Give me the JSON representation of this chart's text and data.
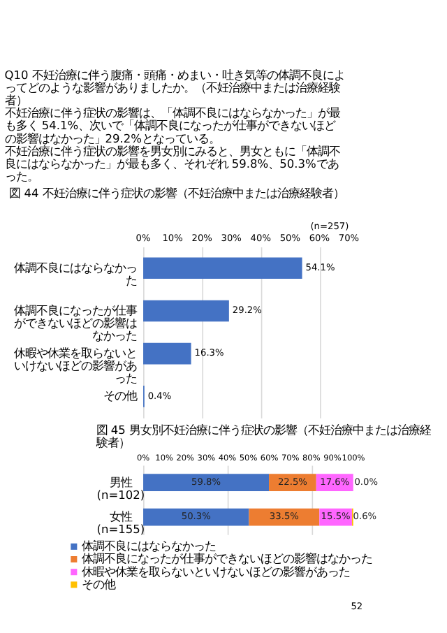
{
  "chart_data": [
    {
      "type": "bar",
      "orientation": "horizontal",
      "title": "図 44 不妊治療に伴う症状の影響（不妊治療中または治療経験者）",
      "annotations": [
        "Q10 不妊治療に伴う腹痛・頭痛・めまい・吐き気等の体調不良によってどのような影響がありましたか。（不妊治療中または治療経験者）",
        "不妊治療に伴う症状の影響は、「体調不良にはならなかった」が最も多く 54.1%、次いで「体調不良になったが仕事ができないほどの影響はなかった」29.2%となっている。",
        "不妊治療に伴う症状の影響を男女別にみると、男女ともに「体調不良にはならなかった」が最も多く、それぞれ 59.8%、50.3%であった。",
        "(n=257)"
      ],
      "categories": [
        "体調不良にはならなかった",
        "体調不良になったが仕事ができないほどの影響はなかった",
        "休暇や休業を取らないといけないほどの影響があった",
        "その他"
      ],
      "values": [
        54.1,
        29.2,
        16.3,
        0.4
      ],
      "value_labels": [
        "54.1%",
        "29.2%",
        "16.3%",
        "0.4%"
      ],
      "color": "#4472c4",
      "xlim": [
        0,
        70
      ],
      "xticks": [
        {
          "value": 0,
          "label": "0%"
        },
        {
          "value": 10,
          "label": "10%"
        },
        {
          "value": 20,
          "label": "20%"
        },
        {
          "value": 30,
          "label": "30%"
        },
        {
          "value": 40,
          "label": "40%"
        },
        {
          "value": 50,
          "label": "50%"
        },
        {
          "value": 60,
          "label": "60%"
        },
        {
          "value": 70,
          "label": "70%"
        }
      ],
      "grid": "x",
      "legend": false
    },
    {
      "type": "bar",
      "orientation": "horizontal",
      "stacked": true,
      "title": "図 45 男女別不妊治療に伴う症状の影響（不妊治療中または治療経験者）",
      "annotations": [
        "52"
      ],
      "categories": [
        "男性\n(n=102)",
        "女性\n(n=155)"
      ],
      "series": [
        {
          "name": "体調不良にはならなかった",
          "color": "#4472c4",
          "values": [
            59.8,
            50.3
          ],
          "value_labels": [
            "59.8%",
            "50.3%"
          ]
        },
        {
          "name": "体調不良になったが仕事ができないほどの影響はなかった",
          "color": "#ed7d31",
          "values": [
            22.5,
            33.5
          ],
          "value_labels": [
            "22.5%",
            "33.5%"
          ]
        },
        {
          "name": "休暇や休業を取らないといけないほどの影響があった",
          "color": "#ff66ff",
          "values": [
            17.6,
            15.5
          ],
          "value_labels": [
            "17.6%",
            "15.5%"
          ]
        },
        {
          "name": "その他",
          "color": "#ffc000",
          "values": [
            0.0,
            0.6
          ],
          "value_labels": [
            "0.0%",
            "0.6%"
          ]
        }
      ],
      "xlim": [
        0,
        100
      ],
      "xticks": [
        {
          "value": 0,
          "label": "0%"
        },
        {
          "value": 10,
          "label": "10%"
        },
        {
          "value": 20,
          "label": "20%"
        },
        {
          "value": 30,
          "label": "30%"
        },
        {
          "value": 40,
          "label": "40%"
        },
        {
          "value": 50,
          "label": "50%"
        },
        {
          "value": 60,
          "label": "60%"
        },
        {
          "value": 70,
          "label": "70%"
        },
        {
          "value": 80,
          "label": "80%"
        },
        {
          "value": 90,
          "label": "90%"
        },
        {
          "value": 100,
          "label": "100%"
        }
      ],
      "grid": "x",
      "legend": "bottom"
    }
  ]
}
